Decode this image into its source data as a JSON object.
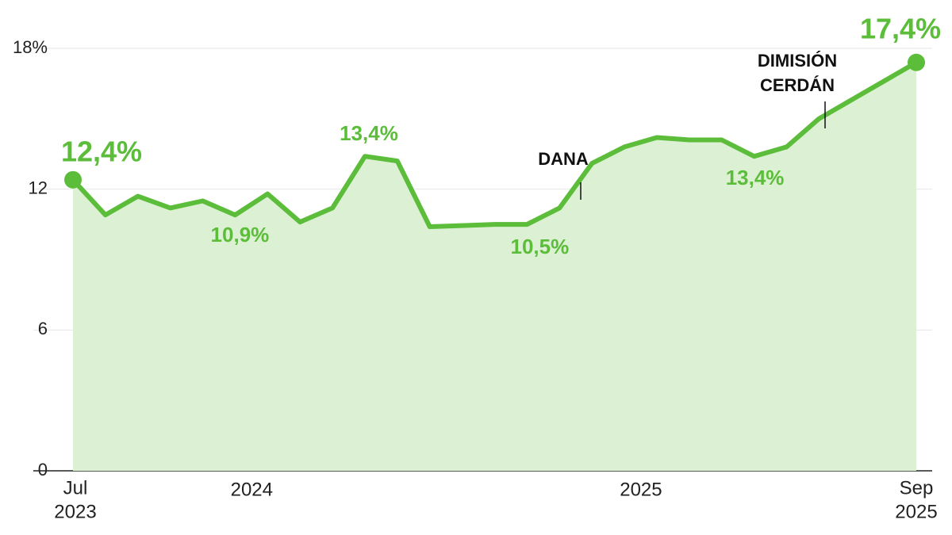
{
  "chart_data": {
    "type": "area",
    "categories": [
      [
        "Jul",
        "2023"
      ],
      null,
      null,
      null,
      null,
      null,
      [
        "2024"
      ],
      null,
      null,
      null,
      null,
      null,
      null,
      null,
      null,
      null,
      null,
      null,
      [
        "2025"
      ],
      null,
      null,
      null,
      null,
      null,
      null,
      null,
      [
        "Sep",
        "2025"
      ]
    ],
    "series": [
      {
        "color": "#5bbd3a",
        "values": [
          12.4,
          10.9,
          11.7,
          11.2,
          11.5,
          10.9,
          11.8,
          10.6,
          11.2,
          13.4,
          13.2,
          10.4,
          10.45,
          10.5,
          10.5,
          11.2,
          13.1,
          13.8,
          14.2,
          14.1,
          14.1,
          13.4,
          13.8,
          15.0,
          15.8,
          16.6,
          17.4
        ],
        "value_labels": [
          "12,4%",
          null,
          null,
          null,
          null,
          "10,9%",
          null,
          null,
          null,
          "13,4%",
          null,
          null,
          null,
          null,
          "10,5%",
          null,
          null,
          null,
          null,
          null,
          null,
          "13,4%",
          null,
          null,
          null,
          null,
          "17,4%"
        ]
      }
    ],
    "annotations": [
      {
        "lines": [
          "DANA"
        ]
      },
      {
        "lines": [
          "DIMISIÓN",
          "CERDÁN"
        ]
      }
    ],
    "ylim": [
      0,
      18
    ],
    "yticks": [
      0,
      6,
      12,
      {
        "value": 18,
        "label": "18%"
      }
    ],
    "grid": true
  }
}
